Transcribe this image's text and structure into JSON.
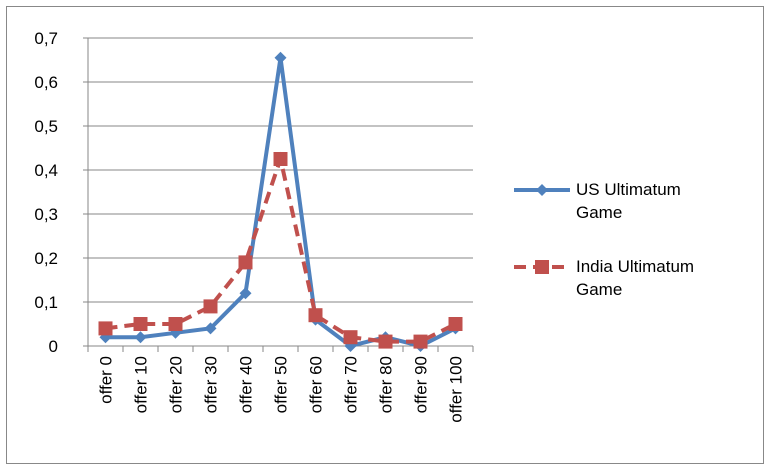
{
  "chart_data": {
    "type": "line",
    "categories": [
      "offer 0",
      "offer 10",
      "offer 20",
      "offer 30",
      "offer 40",
      "offer 50",
      "offer 60",
      "offer 70",
      "offer 80",
      "offer 90",
      "offer 100"
    ],
    "series": [
      {
        "name": "US Ultimatum Game",
        "color": "#4f81bd",
        "marker": "diamond",
        "dashed": false,
        "values": [
          0.02,
          0.02,
          0.03,
          0.04,
          0.12,
          0.655,
          0.06,
          0.0,
          0.02,
          0.0,
          0.04
        ]
      },
      {
        "name": "India Ultimatum Game",
        "color": "#c0504d",
        "marker": "square",
        "dashed": true,
        "values": [
          0.04,
          0.05,
          0.05,
          0.09,
          0.19,
          0.425,
          0.07,
          0.02,
          0.01,
          0.01,
          0.05
        ]
      }
    ],
    "ylim": [
      0,
      0.7
    ],
    "yticks": [
      {
        "value": 0,
        "label": "0"
      },
      {
        "value": 0.1,
        "label": "0,1"
      },
      {
        "value": 0.2,
        "label": "0,2"
      },
      {
        "value": 0.3,
        "label": "0,3"
      },
      {
        "value": 0.4,
        "label": "0,4"
      },
      {
        "value": 0.5,
        "label": "0,5"
      },
      {
        "value": 0.6,
        "label": "0,6"
      },
      {
        "value": 0.7,
        "label": "0,7"
      }
    ],
    "grid": true,
    "legend": "right"
  }
}
